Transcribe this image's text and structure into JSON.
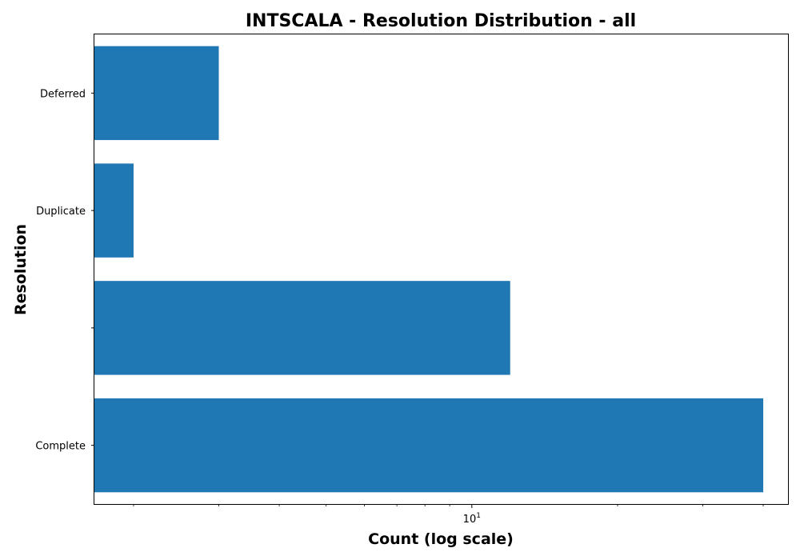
{
  "chart_data": {
    "type": "bar",
    "orientation": "horizontal",
    "title": "INTSCALA - Resolution Distribution - all",
    "xlabel": "Count (log scale)",
    "ylabel": "Resolution",
    "x_scale": "log",
    "xlim": [
      1.66,
      45
    ],
    "x_tick_labels": [
      {
        "base": "10",
        "exp": "1",
        "value": 10
      }
    ],
    "categories": [
      "Complete",
      "",
      "Duplicate",
      "Deferred"
    ],
    "values": [
      40,
      12,
      2,
      3
    ],
    "bar_color": "#1f77b4",
    "grid": false,
    "legend": "none"
  }
}
